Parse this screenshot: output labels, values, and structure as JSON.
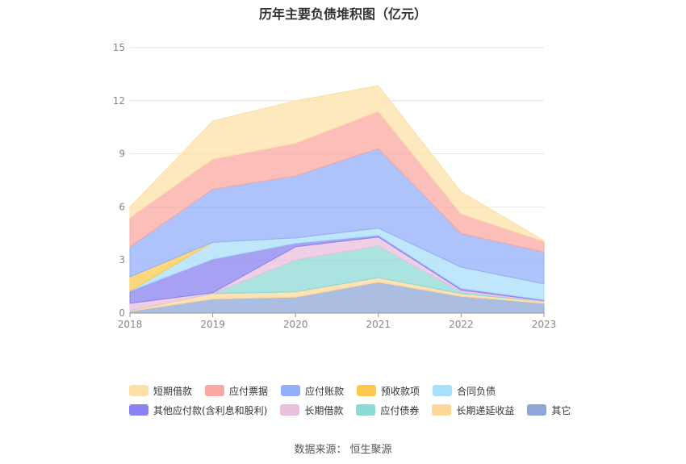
{
  "chart_data": {
    "type": "area",
    "stacked": true,
    "title": "历年主要负债堆积图（亿元）",
    "x": [
      "2018",
      "2019",
      "2020",
      "2021",
      "2022",
      "2023"
    ],
    "ylim": [
      0,
      15
    ],
    "yticks": [
      0,
      3,
      6,
      9,
      12,
      15
    ],
    "grid": true,
    "legend_position": "bottom",
    "series": [
      {
        "name": "其它",
        "color": "#8fa8d8",
        "values": [
          0.1,
          0.8,
          0.9,
          1.75,
          0.95,
          0.55
        ]
      },
      {
        "name": "长期递延收益",
        "color": "#fdd89a",
        "values": [
          0.05,
          0.3,
          0.3,
          0.25,
          0.15,
          0.1
        ]
      },
      {
        "name": "应付债券",
        "color": "#8dd9d4",
        "values": [
          0,
          0,
          1.8,
          1.8,
          0.1,
          0
        ]
      },
      {
        "name": "长期借款",
        "color": "#eabfdd",
        "values": [
          0.4,
          0.05,
          0.75,
          0.5,
          0.1,
          0.05
        ]
      },
      {
        "name": "其他应付款(含利息和股利)",
        "color": "#8a82f0",
        "values": [
          0.7,
          1.9,
          0.2,
          0.1,
          0.1,
          0.05
        ]
      },
      {
        "name": "合同负债",
        "color": "#a9dffb",
        "values": [
          0,
          0.95,
          0.3,
          0.4,
          1.2,
          0.9
        ]
      },
      {
        "name": "预收款项",
        "color": "#fcc94f",
        "values": [
          0.8,
          0,
          0,
          0,
          0,
          0
        ]
      },
      {
        "name": "应付账款",
        "color": "#93aefb",
        "values": [
          1.7,
          3.0,
          3.5,
          4.5,
          1.9,
          1.8
        ]
      },
      {
        "name": "应付票据",
        "color": "#fba8a0",
        "values": [
          1.65,
          1.7,
          1.85,
          2.1,
          1.1,
          0.6
        ]
      },
      {
        "name": "短期借款",
        "color": "#fde0a8",
        "values": [
          0.6,
          2.15,
          2.4,
          1.45,
          1.25,
          0.05
        ]
      }
    ],
    "legend_order": [
      "短期借款",
      "应付票据",
      "应付账款",
      "预收款项",
      "合同负债",
      "其他应付款(含利息和股利)",
      "长期借款",
      "应付债券",
      "长期递延收益",
      "其它"
    ]
  },
  "source": {
    "label": "数据来源：",
    "value": "恒生聚源"
  }
}
